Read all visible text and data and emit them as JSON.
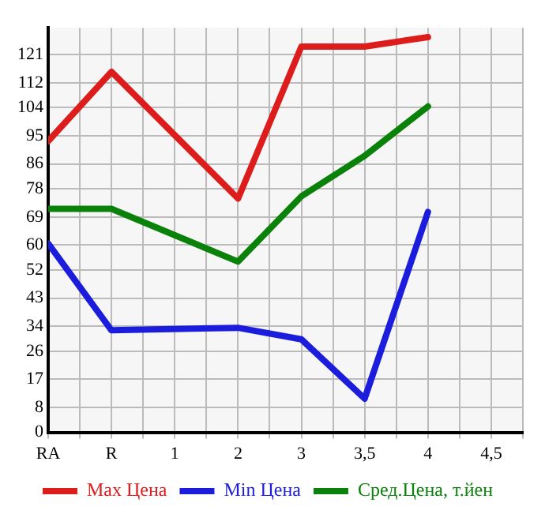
{
  "chart_data": {
    "type": "line",
    "categories": [
      "RA",
      "R",
      "1",
      "2",
      "3",
      "3,5",
      "4",
      "4,5"
    ],
    "series": [
      {
        "name": "Max Цена",
        "color": "#dd1c1c",
        "values": [
          93.3,
          115.5,
          null,
          74.9,
          123.6,
          123.6,
          126.6,
          null
        ]
      },
      {
        "name": "Min Цена",
        "color": "#1c1cdd",
        "values": [
          60.5,
          32.7,
          null,
          33.5,
          29.8,
          10.8,
          70.6,
          null
        ]
      },
      {
        "name": "Сред.Цена, т.йен",
        "color": "#0a820a",
        "values": [
          71.6,
          71.6,
          null,
          54.7,
          75.6,
          88.6,
          104.4,
          null
        ]
      }
    ],
    "ylim": [
      0,
      129.6
    ],
    "yticks": [
      0,
      8,
      17,
      26,
      34,
      43,
      52,
      60,
      69,
      78,
      86,
      95,
      104,
      112,
      121
    ],
    "grid": true,
    "legend": "bottom",
    "marker": "none",
    "line_style": "solid"
  }
}
